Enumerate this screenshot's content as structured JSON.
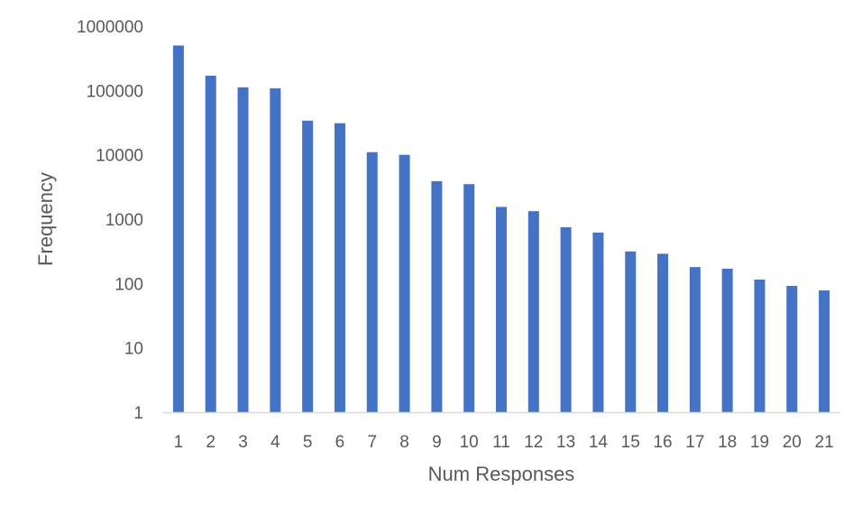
{
  "chart_data": {
    "type": "bar",
    "title": "",
    "xlabel": "Num Responses",
    "ylabel": "Frequency",
    "y_scale": "log",
    "ylim": [
      1,
      1000000
    ],
    "y_ticks": [
      "1",
      "10",
      "100",
      "1000",
      "10000",
      "100000",
      "1000000"
    ],
    "categories": [
      "1",
      "2",
      "3",
      "4",
      "5",
      "6",
      "7",
      "8",
      "9",
      "10",
      "11",
      "12",
      "13",
      "14",
      "15",
      "16",
      "17",
      "18",
      "19",
      "20",
      "21"
    ],
    "values": [
      500000,
      170000,
      112000,
      108000,
      34000,
      31000,
      11000,
      10000,
      3900,
      3500,
      1550,
      1330,
      750,
      620,
      315,
      290,
      180,
      170,
      115,
      92,
      78
    ],
    "grid": false,
    "legend": "none",
    "bar_color": "#4472c4",
    "axis_color": "#d9d9d9"
  }
}
